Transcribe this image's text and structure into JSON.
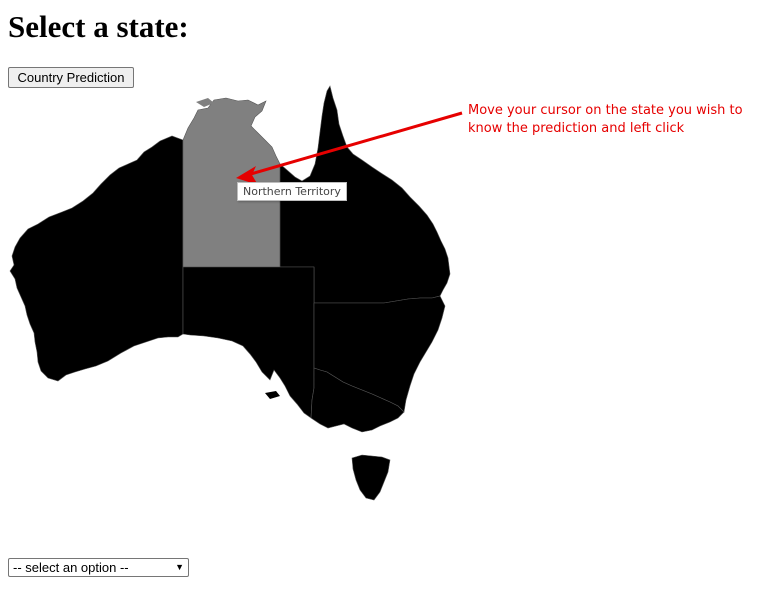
{
  "page": {
    "title": "Select a state:"
  },
  "controls": {
    "country_button_label": "Country Prediction",
    "select_value": "-- select an option --"
  },
  "map": {
    "hovered_state": "Northern Territory",
    "states": [
      "Western Australia",
      "Northern Territory",
      "Queensland",
      "South Australia",
      "New South Wales",
      "Victoria",
      "Tasmania"
    ],
    "colors": {
      "state_fill": "#000000",
      "hover_fill": "#808080",
      "border": "#555555"
    }
  },
  "annotation": {
    "text": "Move your cursor on the state you wish to know the prediction and left click",
    "color": "#e60000"
  }
}
